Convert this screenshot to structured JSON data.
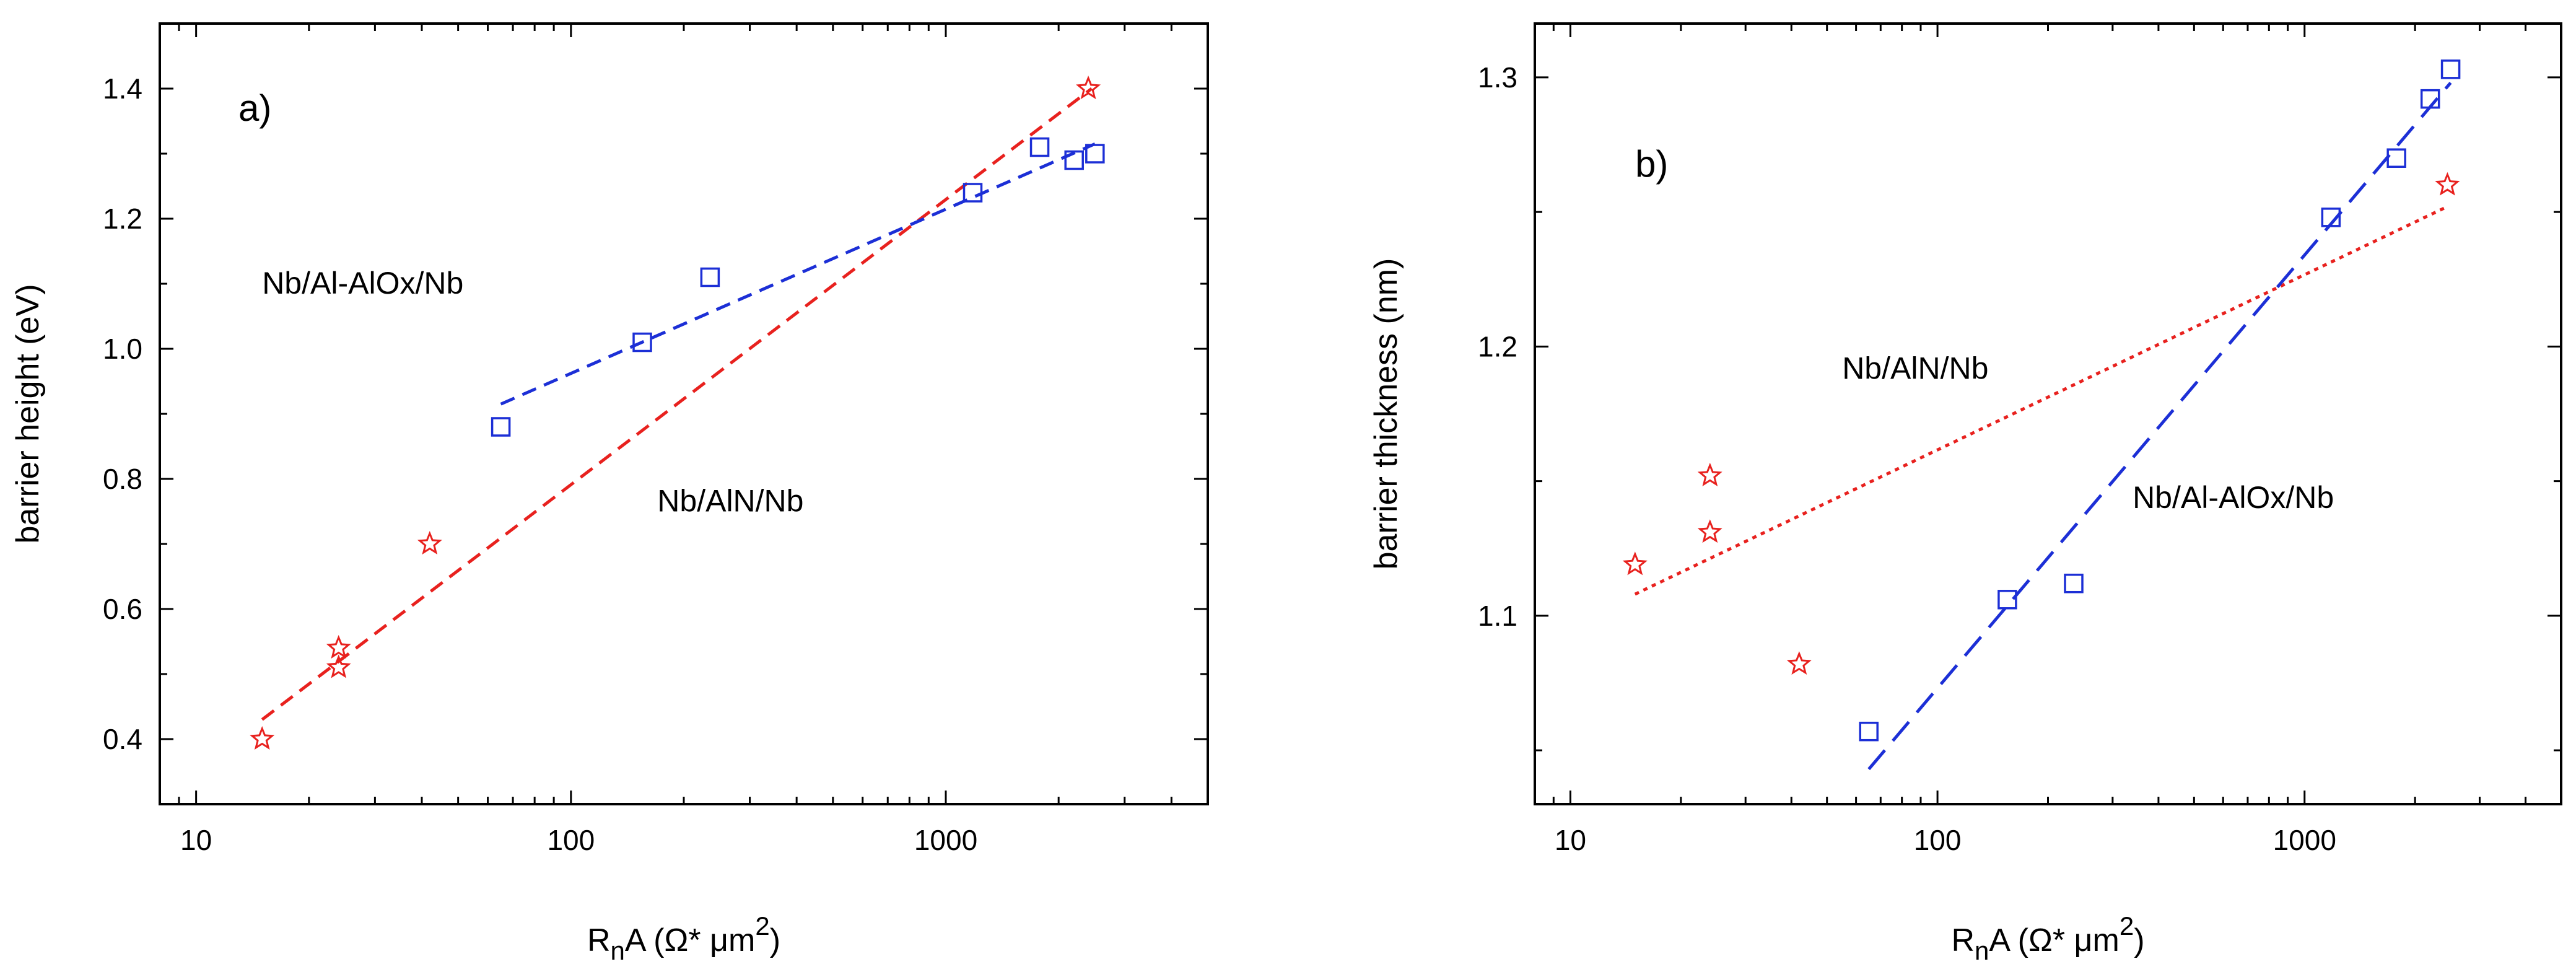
{
  "chart_data": [
    {
      "type": "scatter",
      "panel_label": "a)",
      "xscale": "log",
      "xlim": [
        8,
        5000
      ],
      "ylim": [
        0.3,
        1.5
      ],
      "x_ticks": [
        10,
        100,
        1000
      ],
      "x_tick_labels": [
        "10",
        "100",
        "1000"
      ],
      "y_ticks": [
        0.4,
        0.6,
        0.8,
        1.0,
        1.2,
        1.4
      ],
      "y_tick_labels": [
        "0.4",
        "0.6",
        "0.8",
        "1.0",
        "1.2",
        "1.4"
      ],
      "xlabel": {
        "base": "R",
        "sub": "n",
        "mid": "A (Ω* μm",
        "sup": "2",
        "end": ")"
      },
      "ylabel": "barrier height (eV)",
      "series": [
        {
          "name": "Nb/AlN/Nb",
          "marker": "star",
          "color": "#e8211e",
          "x": [
            15,
            24,
            24,
            42,
            2400
          ],
          "y": [
            0.4,
            0.54,
            0.51,
            0.7,
            1.4
          ],
          "fit": {
            "x": [
              15,
              2450
            ],
            "y": [
              0.43,
              1.4
            ],
            "dash": "short"
          }
        },
        {
          "name": "Nb/Al-AlOx/Nb",
          "marker": "square",
          "color": "#1c2fd6",
          "x": [
            65,
            155,
            235,
            1180,
            1780,
            2200,
            2500
          ],
          "y": [
            0.88,
            1.01,
            1.11,
            1.24,
            1.31,
            1.29,
            1.3
          ],
          "fit": {
            "x": [
              65,
              2500
            ],
            "y": [
              0.915,
              1.315
            ],
            "dash": "short"
          }
        }
      ],
      "annotations": [
        {
          "text": "Nb/Al-AlOx/Nb",
          "x": 15,
          "y": 1.085
        },
        {
          "text": "Nb/AlN/Nb",
          "x": 170,
          "y": 0.75
        }
      ]
    },
    {
      "type": "scatter",
      "panel_label": "b)",
      "xscale": "log",
      "xlim": [
        8,
        5000
      ],
      "ylim": [
        1.03,
        1.32
      ],
      "x_ticks": [
        10,
        100,
        1000
      ],
      "x_tick_labels": [
        "10",
        "100",
        "1000"
      ],
      "y_ticks": [
        1.1,
        1.2,
        1.3
      ],
      "y_tick_labels": [
        "1.1",
        "1.2",
        "1.3"
      ],
      "xlabel": {
        "base": "R",
        "sub": "n",
        "mid": "A (Ω* μm",
        "sup": "2",
        "end": ")"
      },
      "ylabel": "barrier thickness (nm)",
      "series": [
        {
          "name": "Nb/AlN/Nb",
          "marker": "star",
          "color": "#e8211e",
          "x": [
            15,
            24,
            24,
            42,
            2450
          ],
          "y": [
            1.119,
            1.152,
            1.131,
            1.082,
            1.26
          ],
          "fit": {
            "x": [
              15,
              2450
            ],
            "y": [
              1.108,
              1.252
            ],
            "dash": "dot"
          }
        },
        {
          "name": "Nb/Al-AlOx/Nb",
          "marker": "square",
          "color": "#1c2fd6",
          "x": [
            65,
            155,
            235,
            1180,
            1780,
            2200,
            2500
          ],
          "y": [
            1.057,
            1.106,
            1.112,
            1.248,
            1.27,
            1.292,
            1.303
          ],
          "fit": {
            "x": [
              65,
              2500
            ],
            "y": [
              1.043,
              1.298
            ],
            "dash": "long"
          }
        }
      ],
      "annotations": [
        {
          "text": "Nb/AlN/Nb",
          "x": 55,
          "y": 1.188
        },
        {
          "text": "Nb/Al-AlOx/Nb",
          "x": 340,
          "y": 1.14
        }
      ]
    }
  ]
}
